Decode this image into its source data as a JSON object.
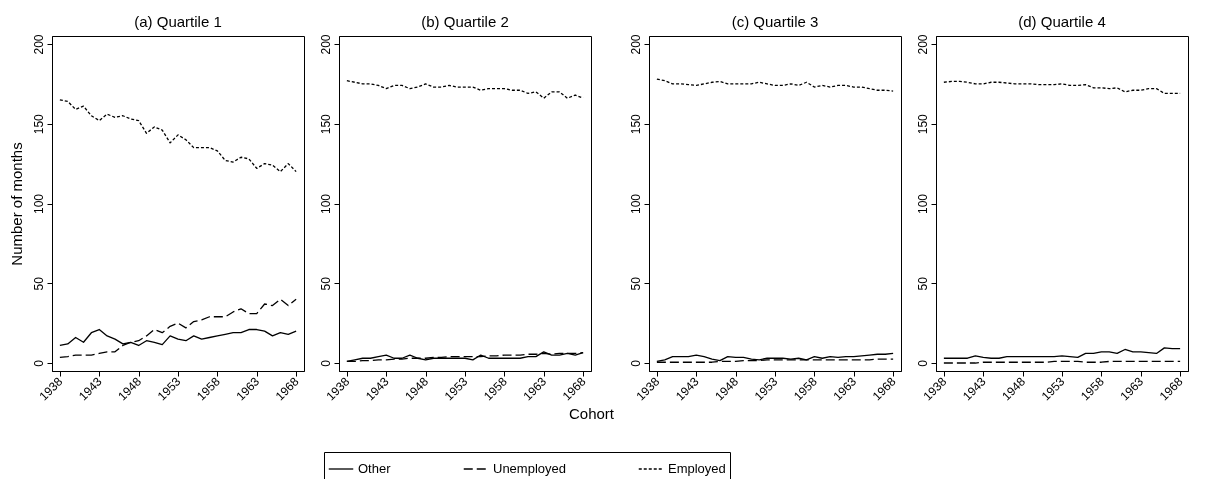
{
  "chart_data": [
    {
      "type": "line",
      "title": "(a) Quartile 1",
      "ylabel": "Number of months",
      "legend": "bottom",
      "grid": false,
      "xlim": [
        1937,
        1969
      ],
      "xticks": [
        1938,
        1943,
        1948,
        1953,
        1958,
        1963,
        1968
      ],
      "ylim": [
        -5,
        205
      ],
      "yticks": [
        0,
        50,
        100,
        150,
        200
      ],
      "x": [
        1938,
        1939,
        1940,
        1941,
        1942,
        1943,
        1944,
        1945,
        1946,
        1947,
        1948,
        1949,
        1950,
        1951,
        1952,
        1953,
        1954,
        1955,
        1956,
        1957,
        1958,
        1959,
        1960,
        1961,
        1962,
        1963,
        1964,
        1965,
        1966,
        1967,
        1968
      ],
      "series": [
        {
          "name": "Other",
          "color": "#000000",
          "line_style": "solid",
          "values": [
            11,
            12,
            16,
            13,
            19,
            21,
            17,
            15,
            12,
            13,
            11,
            14,
            13,
            11.5,
            17,
            15,
            14,
            17,
            15,
            16,
            17,
            18,
            19,
            19,
            21,
            21,
            20,
            17,
            19,
            18,
            20
          ]
        },
        {
          "name": "Unemployed",
          "color": "#000000",
          "line_style": "dashed",
          "values": [
            3.5,
            4,
            5,
            5,
            5,
            6,
            7,
            7,
            11,
            13,
            14,
            17,
            21,
            19,
            23,
            25,
            22,
            26,
            27,
            29,
            29,
            29,
            32,
            34,
            31,
            31,
            37,
            36,
            40,
            36,
            40
          ]
        },
        {
          "name": "Employed",
          "color": "#000000",
          "line_style": "dotted",
          "values": [
            165,
            164,
            159,
            161,
            155,
            152,
            156,
            154,
            155,
            153,
            152,
            144,
            148,
            146,
            138,
            143,
            140,
            135,
            135,
            135,
            133,
            127,
            126,
            129,
            128,
            122,
            125,
            124,
            120,
            125,
            120
          ]
        }
      ]
    },
    {
      "type": "line",
      "title": "(b) Quartile 2",
      "xlabel": "Cohort",
      "grid": false,
      "xlim": [
        1937,
        1969
      ],
      "xticks": [
        1938,
        1943,
        1948,
        1953,
        1958,
        1963,
        1968
      ],
      "ylim": [
        -5,
        205
      ],
      "yticks": [
        0,
        50,
        100,
        150,
        200
      ],
      "x": [
        1938,
        1939,
        1940,
        1941,
        1942,
        1943,
        1944,
        1945,
        1946,
        1947,
        1948,
        1949,
        1950,
        1951,
        1952,
        1953,
        1954,
        1955,
        1956,
        1957,
        1958,
        1959,
        1960,
        1961,
        1962,
        1963,
        1964,
        1965,
        1966,
        1967,
        1968
      ],
      "series": [
        {
          "color": "#000000",
          "line_style": "solid",
          "values": [
            1,
            2,
            3,
            3,
            4,
            5,
            3,
            3,
            5,
            3,
            2,
            3,
            3,
            3,
            3,
            3,
            2,
            5,
            3,
            3,
            3,
            3,
            3,
            4,
            4,
            7,
            5,
            5,
            6,
            5,
            6.5
          ]
        },
        {
          "color": "#000000",
          "line_style": "dashed",
          "values": [
            1,
            1,
            1.5,
            1.5,
            2,
            2,
            2.5,
            2.5,
            3,
            3,
            3,
            3.5,
            3.5,
            4,
            4,
            4,
            4,
            4,
            4.5,
            4.5,
            5,
            5,
            5,
            5.5,
            5.5,
            6,
            5.5,
            6,
            6,
            6,
            6.5
          ]
        },
        {
          "color": "#000000",
          "line_style": "dotted",
          "values": [
            177,
            176,
            175,
            175,
            174,
            172,
            174,
            174,
            172,
            173,
            175,
            173,
            173,
            174,
            173,
            173,
            173,
            171,
            172,
            172,
            172,
            171,
            171,
            169,
            170,
            166,
            170,
            170,
            166,
            168,
            166
          ]
        }
      ]
    },
    {
      "type": "line",
      "title": "(c) Quartile 3",
      "grid": false,
      "xlim": [
        1937,
        1969
      ],
      "xticks": [
        1938,
        1943,
        1948,
        1953,
        1958,
        1963,
        1968
      ],
      "ylim": [
        -5,
        205
      ],
      "yticks": [
        0,
        50,
        100,
        150,
        200
      ],
      "x": [
        1938,
        1939,
        1940,
        1941,
        1942,
        1943,
        1944,
        1945,
        1946,
        1947,
        1948,
        1949,
        1950,
        1951,
        1952,
        1953,
        1954,
        1955,
        1956,
        1957,
        1958,
        1959,
        1960,
        1961,
        1962,
        1963,
        1964,
        1965,
        1966,
        1967,
        1968
      ],
      "series": [
        {
          "color": "#000000",
          "line_style": "solid",
          "values": [
            1,
            2,
            4,
            4,
            4,
            5,
            4,
            2.5,
            1.5,
            4,
            3.5,
            3.5,
            2.5,
            2,
            3,
            3,
            3,
            2.5,
            3,
            2,
            4,
            3,
            4,
            3.5,
            4,
            4,
            4.5,
            5,
            5.5,
            5.5,
            6
          ]
        },
        {
          "color": "#000000",
          "line_style": "dashed",
          "values": [
            0.5,
            0.5,
            0.5,
            0.5,
            0.5,
            0.5,
            0.5,
            0.5,
            1,
            1,
            1,
            1.5,
            1.5,
            1.5,
            2,
            2,
            2,
            2,
            2,
            2,
            2,
            2,
            2,
            2,
            2,
            2,
            2,
            2,
            2.5,
            2.5,
            2.5
          ]
        },
        {
          "color": "#000000",
          "line_style": "dotted",
          "values": [
            178,
            177,
            175,
            175,
            174.5,
            174,
            175,
            176,
            176.5,
            175,
            175,
            175,
            175,
            176,
            175,
            174,
            174,
            175,
            174,
            176,
            173,
            174,
            173,
            174,
            174,
            173,
            173,
            172,
            171,
            171,
            170.5
          ]
        }
      ]
    },
    {
      "type": "line",
      "title": "(d) Quartile 4",
      "grid": false,
      "xlim": [
        1937,
        1969
      ],
      "xticks": [
        1938,
        1943,
        1948,
        1953,
        1958,
        1963,
        1968
      ],
      "ylim": [
        -5,
        205
      ],
      "yticks": [
        0,
        50,
        100,
        150,
        200
      ],
      "x": [
        1938,
        1939,
        1940,
        1941,
        1942,
        1943,
        1944,
        1945,
        1946,
        1947,
        1948,
        1949,
        1950,
        1951,
        1952,
        1953,
        1954,
        1955,
        1956,
        1957,
        1958,
        1959,
        1960,
        1961,
        1962,
        1963,
        1964,
        1965,
        1966,
        1967,
        1968
      ],
      "series": [
        {
          "color": "#000000",
          "line_style": "solid",
          "values": [
            3,
            3,
            3,
            3,
            4.5,
            3.5,
            3,
            3,
            4,
            4,
            4,
            4,
            4,
            4,
            4,
            4.5,
            4,
            3.5,
            6,
            6,
            7,
            7,
            6,
            8.5,
            7,
            7,
            6.5,
            6,
            9.5,
            9,
            9
          ]
        },
        {
          "color": "#000000",
          "line_style": "dashed",
          "values": [
            0,
            0,
            0,
            0,
            0,
            0.5,
            0.5,
            0.5,
            0.5,
            0.5,
            0.5,
            0.5,
            0.5,
            0.5,
            1,
            1,
            1,
            1,
            0.5,
            0.5,
            0.5,
            1,
            1,
            1,
            1,
            1,
            1,
            1,
            1,
            1,
            1
          ]
        },
        {
          "color": "#000000",
          "line_style": "dotted",
          "values": [
            176,
            176.5,
            176.5,
            176,
            175,
            175,
            176,
            176,
            175.5,
            175,
            175,
            175,
            174.5,
            174.5,
            174.5,
            175,
            174,
            174,
            174.5,
            172.5,
            172.5,
            172,
            172.5,
            170,
            171,
            171,
            172,
            172,
            169,
            169,
            169
          ]
        }
      ]
    }
  ]
}
